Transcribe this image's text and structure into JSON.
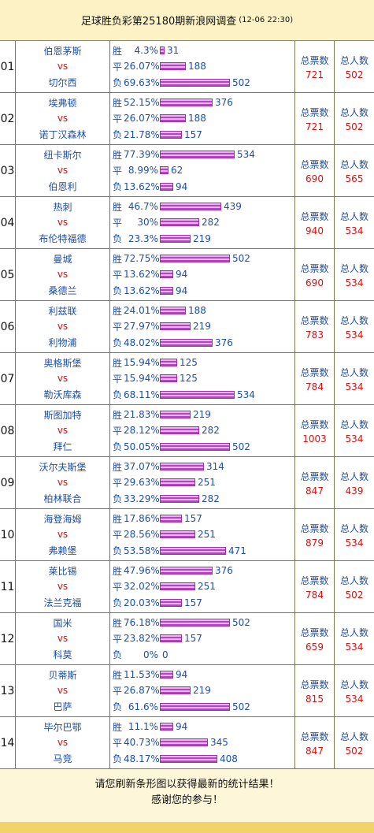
{
  "header": {
    "title": "足球胜负彩第25180期新浪网调查",
    "date": "(12-06 22:30)"
  },
  "labels": {
    "win": "胜",
    "draw": "平",
    "lose": "负",
    "total_votes": "总票数",
    "total_people": "总人数"
  },
  "matches": [
    {
      "no": "01",
      "home": "伯恩茅斯",
      "vs": "vs",
      "away": "切尔西",
      "win_pct": "4.3%",
      "win": "31",
      "draw_pct": "26.07%",
      "draw": "188",
      "lose_pct": "69.63%",
      "lose": "502",
      "total_votes": "721",
      "total_people": "502"
    },
    {
      "no": "02",
      "home": "埃弗顿",
      "vs": "vs",
      "away": "诺丁汉森林",
      "win_pct": "52.15%",
      "win": "376",
      "draw_pct": "26.07%",
      "draw": "188",
      "lose_pct": "21.78%",
      "lose": "157",
      "total_votes": "721",
      "total_people": "502"
    },
    {
      "no": "03",
      "home": "纽卡斯尔",
      "vs": "vs",
      "away": "伯恩利",
      "win_pct": "77.39%",
      "win": "534",
      "draw_pct": "8.99%",
      "draw": "62",
      "lose_pct": "13.62%",
      "lose": "94",
      "total_votes": "690",
      "total_people": "565"
    },
    {
      "no": "04",
      "home": "热刺",
      "vs": "vs",
      "away": "布伦特福德",
      "win_pct": "46.7%",
      "win": "439",
      "draw_pct": "30%",
      "draw": "282",
      "lose_pct": "23.3%",
      "lose": "219",
      "total_votes": "940",
      "total_people": "534"
    },
    {
      "no": "05",
      "home": "曼城",
      "vs": "vs",
      "away": "桑德兰",
      "win_pct": "72.75%",
      "win": "502",
      "draw_pct": "13.62%",
      "draw": "94",
      "lose_pct": "13.62%",
      "lose": "94",
      "total_votes": "690",
      "total_people": "534"
    },
    {
      "no": "06",
      "home": "利兹联",
      "vs": "vs",
      "away": "利物浦",
      "win_pct": "24.01%",
      "win": "188",
      "draw_pct": "27.97%",
      "draw": "219",
      "lose_pct": "48.02%",
      "lose": "376",
      "total_votes": "783",
      "total_people": "534"
    },
    {
      "no": "07",
      "home": "奥格斯堡",
      "vs": "vs",
      "away": "勒沃库森",
      "win_pct": "15.94%",
      "win": "125",
      "draw_pct": "15.94%",
      "draw": "125",
      "lose_pct": "68.11%",
      "lose": "534",
      "total_votes": "784",
      "total_people": "534"
    },
    {
      "no": "08",
      "home": "斯图加特",
      "vs": "vs",
      "away": "拜仁",
      "win_pct": "21.83%",
      "win": "219",
      "draw_pct": "28.12%",
      "draw": "282",
      "lose_pct": "50.05%",
      "lose": "502",
      "total_votes": "1003",
      "total_people": "534"
    },
    {
      "no": "09",
      "home": "沃尔夫斯堡",
      "vs": "vs",
      "away": "柏林联合",
      "win_pct": "37.07%",
      "win": "314",
      "draw_pct": "29.63%",
      "draw": "251",
      "lose_pct": "33.29%",
      "lose": "282",
      "total_votes": "847",
      "total_people": "439"
    },
    {
      "no": "10",
      "home": "海登海姆",
      "vs": "vs",
      "away": "弗赖堡",
      "win_pct": "17.86%",
      "win": "157",
      "draw_pct": "28.56%",
      "draw": "251",
      "lose_pct": "53.58%",
      "lose": "471",
      "total_votes": "879",
      "total_people": "534"
    },
    {
      "no": "11",
      "home": "莱比锡",
      "vs": "vs",
      "away": "法兰克福",
      "win_pct": "47.96%",
      "win": "376",
      "draw_pct": "32.02%",
      "draw": "251",
      "lose_pct": "20.03%",
      "lose": "157",
      "total_votes": "784",
      "total_people": "502"
    },
    {
      "no": "12",
      "home": "国米",
      "vs": "vs",
      "away": "科莫",
      "win_pct": "76.18%",
      "win": "502",
      "draw_pct": "23.82%",
      "draw": "157",
      "lose_pct": "0%",
      "lose": "0",
      "total_votes": "659",
      "total_people": "534"
    },
    {
      "no": "13",
      "home": "贝蒂斯",
      "vs": "vs",
      "away": "巴萨",
      "win_pct": "11.53%",
      "win": "94",
      "draw_pct": "26.87%",
      "draw": "219",
      "lose_pct": "61.6%",
      "lose": "502",
      "total_votes": "815",
      "total_people": "534"
    },
    {
      "no": "14",
      "home": "毕尔巴鄂",
      "vs": "vs",
      "away": "马竞",
      "win_pct": "11.1%",
      "win": "94",
      "draw_pct": "40.73%",
      "draw": "345",
      "lose_pct": "48.17%",
      "lose": "408",
      "total_votes": "847",
      "total_people": "502"
    }
  ],
  "footer": {
    "line1": "请您刷新条形图以获得最新的统计结果！",
    "line2": "感谢您的参与！"
  },
  "colors": {
    "team": "#1d4fa5",
    "vs": "#d81010",
    "bar": "#b844c4",
    "background": "#fdf6d8"
  }
}
